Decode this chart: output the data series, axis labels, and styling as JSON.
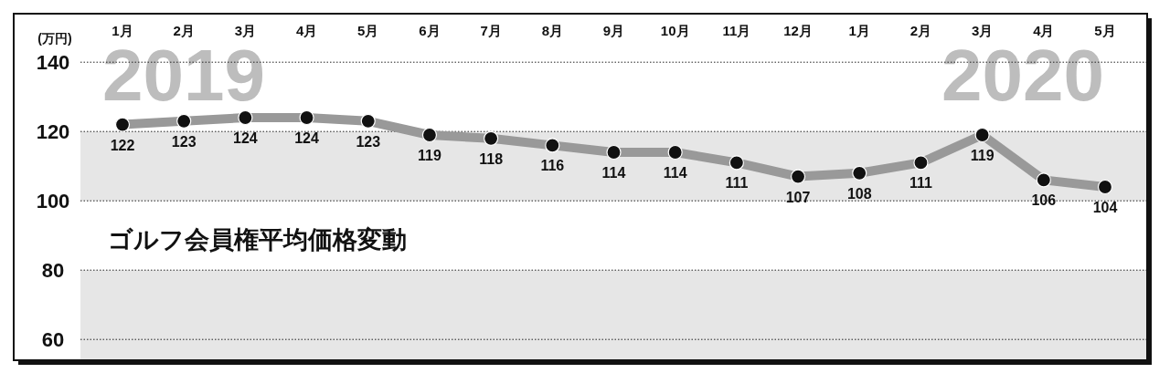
{
  "chart_data": {
    "type": "line",
    "title": "ゴルフ会員権平均価格変動",
    "ylabel": "(万円)",
    "categories": [
      "1月",
      "2月",
      "3月",
      "4月",
      "5月",
      "6月",
      "7月",
      "8月",
      "9月",
      "10月",
      "11月",
      "12月",
      "1月",
      "2月",
      "3月",
      "4月",
      "5月"
    ],
    "series": [
      {
        "color": "#999999",
        "values": [
          122,
          123,
          124,
          124,
          123,
          119,
          118,
          116,
          114,
          114,
          111,
          107,
          108,
          111,
          119,
          106,
          104
        ]
      }
    ],
    "ylim": [
      54,
      154
    ],
    "yticks": [
      60,
      80,
      100,
      120,
      140
    ],
    "grid": "y",
    "marker": "circle",
    "line_style": "solid",
    "data_labels": true,
    "bands": [
      {
        "axis": "y",
        "from": 100,
        "to": 120,
        "color": "#e6e6e6"
      },
      {
        "axis": "y",
        "from": 54,
        "to": 80,
        "color": "#e6e6e6"
      }
    ],
    "annotations": [
      "2019",
      "2020"
    ]
  }
}
